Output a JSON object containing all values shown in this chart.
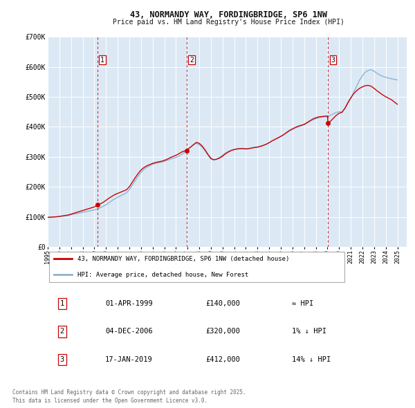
{
  "title": "43, NORMANDY WAY, FORDINGBRIDGE, SP6 1NW",
  "subtitle": "Price paid vs. HM Land Registry's House Price Index (HPI)",
  "plot_bg_color": "#dce9f5",
  "fig_bg_color": "#ffffff",
  "grid_color": "#ffffff",
  "hpi_color": "#8ab4d4",
  "price_color": "#cc0000",
  "vline_color": "#cc0000",
  "ylim": [
    0,
    700000
  ],
  "yticks": [
    0,
    100000,
    200000,
    300000,
    400000,
    500000,
    600000,
    700000
  ],
  "ytick_labels": [
    "£0",
    "£100K",
    "£200K",
    "£300K",
    "£400K",
    "£500K",
    "£600K",
    "£700K"
  ],
  "xmin": 1995.0,
  "xmax": 2025.8,
  "xticks": [
    1995,
    1996,
    1997,
    1998,
    1999,
    2000,
    2001,
    2002,
    2003,
    2004,
    2005,
    2006,
    2007,
    2008,
    2009,
    2010,
    2011,
    2012,
    2013,
    2014,
    2015,
    2016,
    2017,
    2018,
    2019,
    2020,
    2021,
    2022,
    2023,
    2024,
    2025
  ],
  "transactions": [
    {
      "label": "1",
      "date_str": "01-APR-1999",
      "year": 1999.25,
      "price": 140000,
      "relation": "≈ HPI"
    },
    {
      "label": "2",
      "date_str": "04-DEC-2006",
      "year": 2006.92,
      "price": 320000,
      "relation": "1% ↓ HPI"
    },
    {
      "label": "3",
      "date_str": "17-JAN-2019",
      "year": 2019.05,
      "price": 412000,
      "relation": "14% ↓ HPI"
    }
  ],
  "legend_house_label": "43, NORMANDY WAY, FORDINGBRIDGE, SP6 1NW (detached house)",
  "legend_hpi_label": "HPI: Average price, detached house, New Forest",
  "footer_line1": "Contains HM Land Registry data © Crown copyright and database right 2025.",
  "footer_line2": "This data is licensed under the Open Government Licence v3.0.",
  "hpi_data": [
    [
      1995.0,
      98000
    ],
    [
      1995.25,
      99000
    ],
    [
      1995.5,
      99500
    ],
    [
      1995.75,
      100000
    ],
    [
      1996.0,
      101000
    ],
    [
      1996.25,
      102000
    ],
    [
      1996.5,
      103000
    ],
    [
      1996.75,
      104000
    ],
    [
      1997.0,
      107000
    ],
    [
      1997.25,
      109000
    ],
    [
      1997.5,
      111000
    ],
    [
      1997.75,
      113000
    ],
    [
      1998.0,
      115000
    ],
    [
      1998.25,
      117000
    ],
    [
      1998.5,
      119000
    ],
    [
      1998.75,
      121000
    ],
    [
      1999.0,
      123000
    ],
    [
      1999.25,
      126000
    ],
    [
      1999.5,
      130000
    ],
    [
      1999.75,
      135000
    ],
    [
      2000.0,
      140000
    ],
    [
      2000.25,
      147000
    ],
    [
      2000.5,
      154000
    ],
    [
      2000.75,
      160000
    ],
    [
      2001.0,
      165000
    ],
    [
      2001.25,
      170000
    ],
    [
      2001.5,
      175000
    ],
    [
      2001.75,
      180000
    ],
    [
      2002.0,
      190000
    ],
    [
      2002.25,
      205000
    ],
    [
      2002.5,
      220000
    ],
    [
      2002.75,
      235000
    ],
    [
      2003.0,
      248000
    ],
    [
      2003.25,
      258000
    ],
    [
      2003.5,
      265000
    ],
    [
      2003.75,
      270000
    ],
    [
      2004.0,
      275000
    ],
    [
      2004.25,
      278000
    ],
    [
      2004.5,
      280000
    ],
    [
      2004.75,
      282000
    ],
    [
      2005.0,
      285000
    ],
    [
      2005.25,
      288000
    ],
    [
      2005.5,
      292000
    ],
    [
      2005.75,
      295000
    ],
    [
      2006.0,
      298000
    ],
    [
      2006.25,
      302000
    ],
    [
      2006.5,
      308000
    ],
    [
      2006.75,
      315000
    ],
    [
      2007.0,
      323000
    ],
    [
      2007.25,
      332000
    ],
    [
      2007.5,
      340000
    ],
    [
      2007.75,
      345000
    ],
    [
      2008.0,
      340000
    ],
    [
      2008.25,
      332000
    ],
    [
      2008.5,
      320000
    ],
    [
      2008.75,
      305000
    ],
    [
      2009.0,
      292000
    ],
    [
      2009.25,
      290000
    ],
    [
      2009.5,
      293000
    ],
    [
      2009.75,
      298000
    ],
    [
      2010.0,
      305000
    ],
    [
      2010.25,
      313000
    ],
    [
      2010.5,
      318000
    ],
    [
      2010.75,
      322000
    ],
    [
      2011.0,
      325000
    ],
    [
      2011.25,
      327000
    ],
    [
      2011.5,
      328000
    ],
    [
      2011.75,
      328000
    ],
    [
      2012.0,
      327000
    ],
    [
      2012.25,
      328000
    ],
    [
      2012.5,
      330000
    ],
    [
      2012.75,
      332000
    ],
    [
      2013.0,
      333000
    ],
    [
      2013.25,
      335000
    ],
    [
      2013.5,
      338000
    ],
    [
      2013.75,
      342000
    ],
    [
      2014.0,
      347000
    ],
    [
      2014.25,
      353000
    ],
    [
      2014.5,
      358000
    ],
    [
      2014.75,
      363000
    ],
    [
      2015.0,
      368000
    ],
    [
      2015.25,
      374000
    ],
    [
      2015.5,
      380000
    ],
    [
      2015.75,
      386000
    ],
    [
      2016.0,
      391000
    ],
    [
      2016.25,
      396000
    ],
    [
      2016.5,
      400000
    ],
    [
      2016.75,
      403000
    ],
    [
      2017.0,
      407000
    ],
    [
      2017.25,
      412000
    ],
    [
      2017.5,
      418000
    ],
    [
      2017.75,
      423000
    ],
    [
      2018.0,
      427000
    ],
    [
      2018.25,
      430000
    ],
    [
      2018.5,
      432000
    ],
    [
      2018.75,
      433000
    ],
    [
      2019.0,
      434000
    ],
    [
      2019.25,
      438000
    ],
    [
      2019.5,
      443000
    ],
    [
      2019.75,
      448000
    ],
    [
      2020.0,
      450000
    ],
    [
      2020.25,
      450000
    ],
    [
      2020.5,
      460000
    ],
    [
      2020.75,
      478000
    ],
    [
      2021.0,
      495000
    ],
    [
      2021.25,
      515000
    ],
    [
      2021.5,
      535000
    ],
    [
      2021.75,
      555000
    ],
    [
      2022.0,
      570000
    ],
    [
      2022.25,
      582000
    ],
    [
      2022.5,
      588000
    ],
    [
      2022.75,
      590000
    ],
    [
      2023.0,
      585000
    ],
    [
      2023.25,
      578000
    ],
    [
      2023.5,
      572000
    ],
    [
      2023.75,
      568000
    ],
    [
      2024.0,
      565000
    ],
    [
      2024.25,
      562000
    ],
    [
      2024.5,
      560000
    ],
    [
      2024.75,
      558000
    ],
    [
      2025.0,
      556000
    ]
  ],
  "price_data": [
    [
      1995.0,
      98000
    ],
    [
      1995.25,
      99000
    ],
    [
      1995.5,
      99500
    ],
    [
      1995.75,
      100000
    ],
    [
      1996.0,
      101500
    ],
    [
      1996.25,
      103000
    ],
    [
      1996.5,
      104500
    ],
    [
      1996.75,
      106000
    ],
    [
      1997.0,
      109000
    ],
    [
      1997.25,
      112000
    ],
    [
      1997.5,
      115000
    ],
    [
      1997.75,
      118000
    ],
    [
      1998.0,
      121000
    ],
    [
      1998.25,
      124000
    ],
    [
      1998.5,
      127000
    ],
    [
      1998.75,
      130000
    ],
    [
      1999.0,
      133000
    ],
    [
      1999.25,
      140000
    ],
    [
      1999.5,
      143000
    ],
    [
      1999.75,
      148000
    ],
    [
      2000.0,
      155000
    ],
    [
      2000.25,
      162000
    ],
    [
      2000.5,
      168000
    ],
    [
      2000.75,
      174000
    ],
    [
      2001.0,
      178000
    ],
    [
      2001.25,
      182000
    ],
    [
      2001.5,
      186000
    ],
    [
      2001.75,
      190000
    ],
    [
      2002.0,
      200000
    ],
    [
      2002.25,
      215000
    ],
    [
      2002.5,
      230000
    ],
    [
      2002.75,
      244000
    ],
    [
      2003.0,
      256000
    ],
    [
      2003.25,
      264000
    ],
    [
      2003.5,
      270000
    ],
    [
      2003.75,
      274000
    ],
    [
      2004.0,
      278000
    ],
    [
      2004.25,
      281000
    ],
    [
      2004.5,
      283000
    ],
    [
      2004.75,
      285000
    ],
    [
      2005.0,
      288000
    ],
    [
      2005.25,
      292000
    ],
    [
      2005.5,
      297000
    ],
    [
      2005.75,
      301000
    ],
    [
      2006.0,
      305000
    ],
    [
      2006.25,
      310000
    ],
    [
      2006.5,
      316000
    ],
    [
      2006.75,
      320000
    ],
    [
      2006.92,
      320000
    ],
    [
      2007.0,
      325000
    ],
    [
      2007.25,
      332000
    ],
    [
      2007.5,
      340000
    ],
    [
      2007.75,
      348000
    ],
    [
      2008.0,
      345000
    ],
    [
      2008.25,
      336000
    ],
    [
      2008.5,
      323000
    ],
    [
      2008.75,
      308000
    ],
    [
      2009.0,
      295000
    ],
    [
      2009.25,
      290000
    ],
    [
      2009.5,
      292000
    ],
    [
      2009.75,
      296000
    ],
    [
      2010.0,
      302000
    ],
    [
      2010.25,
      310000
    ],
    [
      2010.5,
      316000
    ],
    [
      2010.75,
      321000
    ],
    [
      2011.0,
      324000
    ],
    [
      2011.25,
      326000
    ],
    [
      2011.5,
      327000
    ],
    [
      2011.75,
      327000
    ],
    [
      2012.0,
      326000
    ],
    [
      2012.25,
      327000
    ],
    [
      2012.5,
      329000
    ],
    [
      2012.75,
      331000
    ],
    [
      2013.0,
      332000
    ],
    [
      2013.25,
      335000
    ],
    [
      2013.5,
      338000
    ],
    [
      2013.75,
      342000
    ],
    [
      2014.0,
      347000
    ],
    [
      2014.25,
      353000
    ],
    [
      2014.5,
      358000
    ],
    [
      2014.75,
      363000
    ],
    [
      2015.0,
      368000
    ],
    [
      2015.25,
      374000
    ],
    [
      2015.5,
      381000
    ],
    [
      2015.75,
      388000
    ],
    [
      2016.0,
      393000
    ],
    [
      2016.25,
      398000
    ],
    [
      2016.5,
      402000
    ],
    [
      2016.75,
      405000
    ],
    [
      2017.0,
      408000
    ],
    [
      2017.25,
      414000
    ],
    [
      2017.5,
      420000
    ],
    [
      2017.75,
      426000
    ],
    [
      2018.0,
      430000
    ],
    [
      2018.25,
      433000
    ],
    [
      2018.5,
      434000
    ],
    [
      2018.75,
      435000
    ],
    [
      2019.0,
      436000
    ],
    [
      2019.05,
      412000
    ],
    [
      2019.25,
      418000
    ],
    [
      2019.5,
      428000
    ],
    [
      2019.75,
      438000
    ],
    [
      2020.0,
      445000
    ],
    [
      2020.25,
      448000
    ],
    [
      2020.5,
      462000
    ],
    [
      2020.75,
      480000
    ],
    [
      2021.0,
      496000
    ],
    [
      2021.25,
      510000
    ],
    [
      2021.5,
      520000
    ],
    [
      2021.75,
      528000
    ],
    [
      2022.0,
      533000
    ],
    [
      2022.25,
      537000
    ],
    [
      2022.5,
      538000
    ],
    [
      2022.75,
      535000
    ],
    [
      2023.0,
      528000
    ],
    [
      2023.25,
      520000
    ],
    [
      2023.5,
      513000
    ],
    [
      2023.75,
      506000
    ],
    [
      2024.0,
      500000
    ],
    [
      2024.25,
      495000
    ],
    [
      2024.5,
      490000
    ],
    [
      2024.75,
      482000
    ],
    [
      2025.0,
      475000
    ]
  ]
}
